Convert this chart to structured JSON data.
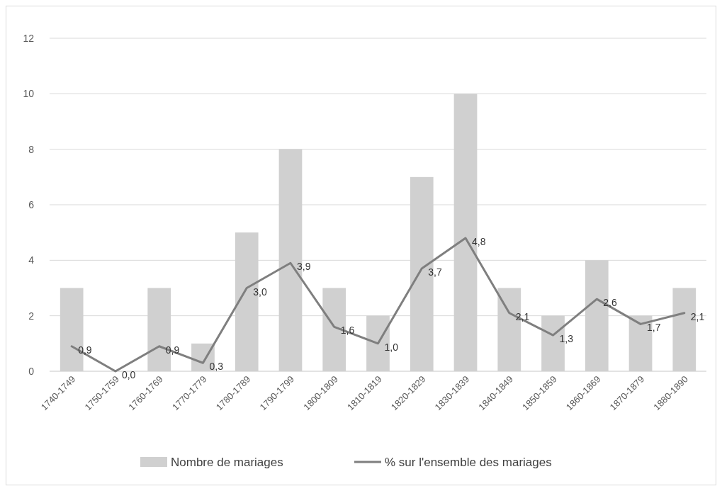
{
  "chart_data": {
    "type": "bar",
    "categories": [
      "1740-1749",
      "1750-1759",
      "1760-1769",
      "1770-1779",
      "1780-1789",
      "1790-1799",
      "1800-1809",
      "1810-1819",
      "1820-1829",
      "1830-1839",
      "1840-1849",
      "1850-1859",
      "1860-1869",
      "1870-1879",
      "1880-1890"
    ],
    "series": [
      {
        "name": "Nombre de mariages",
        "color": "#d0d0d0",
        "values": [
          3,
          0,
          3,
          1,
          5,
          8,
          3,
          2,
          7,
          10,
          3,
          2,
          4,
          2,
          3
        ]
      },
      {
        "name": "% sur l'ensemble des mariages",
        "type": "line",
        "color": "#7f7f7f",
        "values": [
          0.9,
          0.0,
          0.9,
          0.3,
          3.0,
          3.9,
          1.6,
          1.0,
          3.7,
          4.8,
          2.1,
          1.3,
          2.6,
          1.7,
          2.1
        ],
        "value_labels": [
          "0,9",
          "0,0",
          "0,9",
          "0,3",
          "3,0",
          "3,9",
          "1,6",
          "1,0",
          "3,7",
          "4,8",
          "2,1",
          "1,3",
          "2,6",
          "1,7",
          "2,1"
        ]
      }
    ],
    "ylim": [
      0,
      12
    ],
    "yticks": [
      0,
      2,
      4,
      6,
      8,
      10,
      12
    ],
    "grid": "y",
    "legend": "bottom",
    "marker": "none",
    "line_style": "solid"
  }
}
